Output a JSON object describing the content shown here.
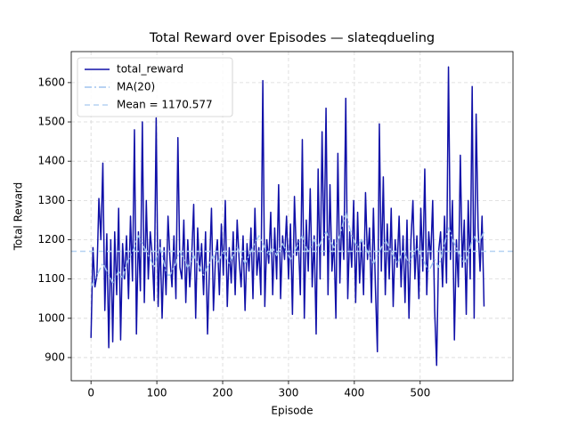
{
  "chart_data": {
    "type": "line",
    "title": "Total Reward over Episodes — slateqdueling",
    "x_label": "Episode",
    "y_label": "Total Reward",
    "x": [
      0,
      3,
      6,
      9,
      12,
      15,
      18,
      21,
      24,
      27,
      30,
      33,
      36,
      39,
      42,
      45,
      48,
      51,
      54,
      57,
      60,
      63,
      66,
      69,
      72,
      75,
      78,
      81,
      84,
      87,
      90,
      93,
      96,
      99,
      102,
      105,
      108,
      111,
      114,
      117,
      120,
      123,
      126,
      129,
      132,
      135,
      138,
      141,
      144,
      147,
      150,
      153,
      156,
      159,
      162,
      165,
      168,
      171,
      174,
      177,
      180,
      183,
      186,
      189,
      192,
      195,
      198,
      201,
      204,
      207,
      210,
      213,
      216,
      219,
      222,
      225,
      228,
      231,
      234,
      237,
      240,
      243,
      246,
      249,
      252,
      255,
      258,
      261,
      264,
      267,
      270,
      273,
      276,
      279,
      282,
      285,
      288,
      291,
      294,
      297,
      300,
      303,
      306,
      309,
      312,
      315,
      318,
      321,
      324,
      327,
      330,
      333,
      336,
      339,
      342,
      345,
      348,
      351,
      354,
      357,
      360,
      363,
      366,
      369,
      372,
      375,
      378,
      381,
      384,
      387,
      390,
      393,
      396,
      399,
      402,
      405,
      408,
      411,
      414,
      417,
      420,
      423,
      426,
      429,
      432,
      435,
      438,
      441,
      444,
      447,
      450,
      453,
      456,
      459,
      462,
      465,
      468,
      471,
      474,
      477,
      480,
      483,
      486,
      489,
      492,
      495,
      498,
      501,
      504,
      507,
      510,
      513,
      516,
      519,
      522,
      525,
      528,
      531,
      534,
      537,
      540,
      543,
      546,
      549,
      552,
      555,
      558,
      561,
      564,
      567,
      570,
      573,
      576,
      579,
      582,
      585,
      588,
      591,
      594,
      597
    ],
    "series": [
      {
        "name": "total_reward",
        "color": "#1010a8",
        "linestyle": "solid",
        "width": 1.5,
        "values": [
          950,
          1180,
          1080,
          1110,
          1305,
          1200,
          1395,
          1020,
          1215,
          925,
          1200,
          940,
          1220,
          1060,
          1280,
          945,
          1190,
          1100,
          1210,
          1050,
          1260,
          1095,
          1480,
          960,
          1220,
          1070,
          1500,
          1040,
          1300,
          1100,
          1220,
          1160,
          1045,
          1510,
          1030,
          1200,
          1000,
          1180,
          1060,
          1260,
          1150,
          1080,
          1210,
          1050,
          1460,
          1130,
          1100,
          1250,
          1040,
          1200,
          1080,
          1160,
          1290,
          1000,
          1230,
          1120,
          1190,
          1060,
          1220,
          960,
          1130,
          1280,
          1020,
          1150,
          1200,
          1060,
          1240,
          1110,
          1300,
          1030,
          1180,
          1090,
          1220,
          1060,
          1250,
          1150,
          1080,
          1210,
          1020,
          1190,
          1120,
          1230,
          1050,
          1280,
          1110,
          1180,
          1060,
          1605,
          1030,
          1200,
          1140,
          1270,
          1060,
          1230,
          1100,
          1340,
          1050,
          1210,
          1150,
          1260,
          1100,
          1240,
          1010,
          1310,
          1160,
          1200,
          1060,
          1455,
          1000,
          1250,
          1120,
          1330,
          1080,
          1210,
          960,
          1380,
          1100,
          1475,
          1160,
          1535,
          1060,
          1340,
          1120,
          1200,
          1000,
          1420,
          1090,
          1260,
          1150,
          1560,
          1050,
          1220,
          1130,
          1300,
          1040,
          1270,
          1090,
          1200,
          1060,
          1320,
          1150,
          1230,
          1040,
          1280,
          1080,
          915,
          1495,
          1120,
          1360,
          1060,
          1240,
          1100,
          1280,
          1030,
          1200,
          1130,
          1260,
          1080,
          1210,
          1040,
          1250,
          1000,
          1200,
          1300,
          1100,
          1210,
          1050,
          1280,
          1120,
          1380,
          1060,
          1220,
          1150,
          1300,
          1020,
          880,
          1170,
          1220,
          1080,
          1260,
          1090,
          1640,
          1150,
          1300,
          945,
          1200,
          1080,
          1415,
          1130,
          1250,
          1010,
          1300,
          1100,
          1590,
          1000,
          1520,
          1230,
          1120,
          1260,
          1030
        ]
      },
      {
        "name": "MA(20)",
        "color": "#9fc3ef",
        "linestyle": "dashdot",
        "width": 1.5,
        "values": [
          1080,
          1090,
          1100,
          1110,
          1120,
          1130,
          1140,
          1130,
          1120,
          1110,
          1100,
          1090,
          1100,
          1110,
          1120,
          1110,
          1100,
          1120,
          1140,
          1150,
          1160,
          1170,
          1180,
          1200,
          1210,
          1200,
          1190,
          1180,
          1170,
          1160,
          1150,
          1140,
          1130,
          1150,
          1170,
          1180,
          1160,
          1140,
          1120,
          1110,
          1110,
          1120,
          1130,
          1140,
          1160,
          1170,
          1160,
          1150,
          1140,
          1130,
          1140,
          1150,
          1160,
          1150,
          1140,
          1130,
          1120,
          1110,
          1120,
          1130,
          1140,
          1150,
          1160,
          1150,
          1140,
          1150,
          1160,
          1170,
          1160,
          1150,
          1140,
          1150,
          1160,
          1170,
          1180,
          1170,
          1160,
          1150,
          1140,
          1150,
          1160,
          1170,
          1180,
          1190,
          1200,
          1210,
          1200,
          1190,
          1180,
          1170,
          1160,
          1170,
          1180,
          1170,
          1160,
          1170,
          1180,
          1190,
          1180,
          1170,
          1160,
          1150,
          1160,
          1170,
          1180,
          1190,
          1200,
          1210,
          1190,
          1180,
          1170,
          1180,
          1190,
          1200,
          1190,
          1180,
          1190,
          1200,
          1210,
          1220,
          1210,
          1200,
          1190,
          1180,
          1190,
          1200,
          1210,
          1230,
          1250,
          1270,
          1250,
          1230,
          1210,
          1200,
          1190,
          1180,
          1190,
          1200,
          1190,
          1180,
          1170,
          1160,
          1150,
          1140,
          1150,
          1160,
          1170,
          1180,
          1190,
          1200,
          1190,
          1180,
          1170,
          1160,
          1150,
          1140,
          1150,
          1160,
          1170,
          1160,
          1150,
          1140,
          1150,
          1160,
          1170,
          1180,
          1170,
          1160,
          1150,
          1140,
          1130,
          1120,
          1130,
          1140,
          1150,
          1140,
          1130,
          1150,
          1170,
          1190,
          1210,
          1230,
          1220,
          1200,
          1190,
          1180,
          1170,
          1160,
          1150,
          1140,
          1150,
          1160,
          1180,
          1200,
          1210,
          1200,
          1190,
          1200,
          1210,
          1220
        ]
      }
    ],
    "reference_lines": [
      {
        "name": "Mean = 1170.577",
        "value": 1170.577,
        "color": "#b5d2f2",
        "linestyle": "dashed"
      }
    ],
    "xlim": [
      -30,
      641
    ],
    "ylim": [
      841,
      1679
    ],
    "xticks": [
      0,
      100,
      200,
      300,
      400,
      500
    ],
    "yticks": [
      900,
      1000,
      1100,
      1200,
      1300,
      1400,
      1500,
      1600
    ],
    "grid": true,
    "legend": "upper left"
  }
}
